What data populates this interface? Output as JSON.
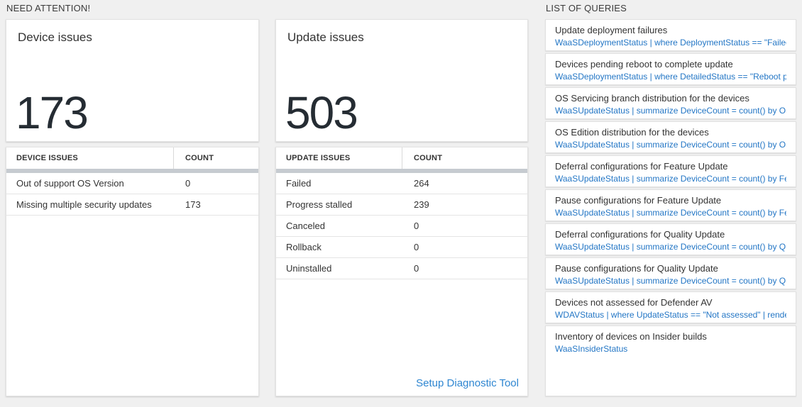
{
  "sections": {
    "need_attention_label": "NEED ATTENTION!",
    "list_of_queries_label": "LIST OF QUERIES"
  },
  "device_issues": {
    "card_title": "Device issues",
    "total": "173",
    "table": {
      "col_issue": "DEVICE ISSUES",
      "col_count": "COUNT",
      "rows": [
        {
          "label": "Out of support OS Version",
          "count": "0"
        },
        {
          "label": "Missing multiple security updates",
          "count": "173"
        }
      ]
    }
  },
  "update_issues": {
    "card_title": "Update issues",
    "total": "503",
    "table": {
      "col_issue": "UPDATE ISSUES",
      "col_count": "COUNT",
      "rows": [
        {
          "label": "Failed",
          "count": "264"
        },
        {
          "label": "Progress stalled",
          "count": "239"
        },
        {
          "label": "Canceled",
          "count": "0"
        },
        {
          "label": "Rollback",
          "count": "0"
        },
        {
          "label": "Uninstalled",
          "count": "0"
        }
      ]
    },
    "footer_link": "Setup Diagnostic Tool"
  },
  "queries": [
    {
      "title": "Update deployment failures",
      "query": "WaaSDeploymentStatus | where DeploymentStatus == \"Failed\" |..."
    },
    {
      "title": "Devices pending reboot to complete update",
      "query": "WaaSDeploymentStatus | where DetailedStatus == \"Reboot pend..."
    },
    {
      "title": "OS Servicing branch distribution for the devices",
      "query": "WaaSUpdateStatus | summarize DeviceCount = count() by OSSer..."
    },
    {
      "title": "OS Edition distribution for the devices",
      "query": "WaaSUpdateStatus | summarize DeviceCount = count() by OSEdit..."
    },
    {
      "title": "Deferral configurations for Feature Update",
      "query": "WaaSUpdateStatus | summarize DeviceCount = count() by Featur..."
    },
    {
      "title": "Pause configurations for Feature Update",
      "query": "WaaSUpdateStatus | summarize DeviceCount = count() by Featur..."
    },
    {
      "title": "Deferral configurations for Quality Update",
      "query": "WaaSUpdateStatus | summarize DeviceCount = count() by Qualit..."
    },
    {
      "title": "Pause configurations for Quality Update",
      "query": "WaaSUpdateStatus | summarize DeviceCount = count() by Qualit..."
    },
    {
      "title": "Devices not assessed for Defender AV",
      "query": "WDAVStatus | where UpdateStatus == \"Not assessed\" | render ta..."
    },
    {
      "title": "Inventory of devices on Insider builds",
      "query": "WaaSInsiderStatus"
    }
  ],
  "colors": {
    "background": "#f0f0f0",
    "query_link_blue": "#2376c5",
    "diag_link_blue": "#2e86d1",
    "big_number": "#252c33",
    "table_header_bar": "#c6cbd0"
  }
}
